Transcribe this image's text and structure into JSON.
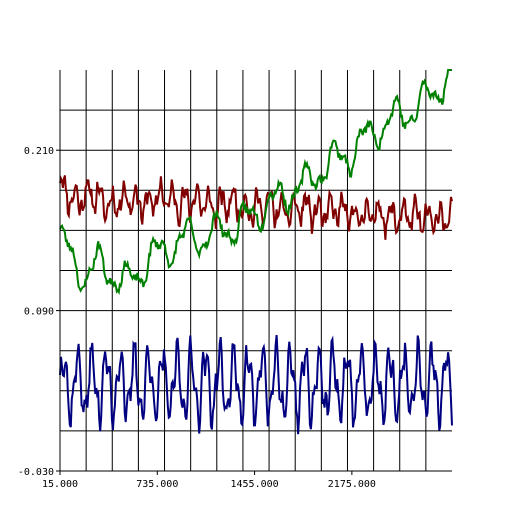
{
  "chart_data": {
    "type": "line",
    "title": "",
    "xlabel": "",
    "ylabel": "",
    "xlim": [
      15.0,
      2916.0
    ],
    "ylim": [
      -0.03,
      0.27
    ],
    "x_ticks": [
      15.0,
      735.0,
      1455.0,
      2175.0
    ],
    "x_tick_labels": [
      "15.000",
      "735.000",
      "1455.000",
      "2175.000"
    ],
    "y_ticks": [
      -0.03,
      0.09,
      0.21
    ],
    "y_tick_labels": [
      "-0.030",
      "0.090",
      "0.210"
    ],
    "grid": true,
    "series": [
      {
        "color": "#800000",
        "values": [
          [
            15,
            0.184
          ],
          [
            120,
            0.172
          ],
          [
            250,
            0.178
          ],
          [
            380,
            0.168
          ],
          [
            510,
            0.175
          ],
          [
            640,
            0.169
          ],
          [
            770,
            0.176
          ],
          [
            900,
            0.17
          ],
          [
            1030,
            0.173
          ],
          [
            1160,
            0.167
          ],
          [
            1290,
            0.172
          ],
          [
            1420,
            0.165
          ],
          [
            1550,
            0.17
          ],
          [
            1680,
            0.163
          ],
          [
            1810,
            0.168
          ],
          [
            1940,
            0.162
          ],
          [
            2070,
            0.166
          ],
          [
            2200,
            0.16
          ],
          [
            2330,
            0.164
          ],
          [
            2460,
            0.159
          ],
          [
            2590,
            0.162
          ],
          [
            2720,
            0.158
          ],
          [
            2916,
            0.16
          ]
        ]
      },
      {
        "color": "#008000",
        "values": [
          [
            15,
            0.148
          ],
          [
            100,
            0.128
          ],
          [
            200,
            0.115
          ],
          [
            300,
            0.126
          ],
          [
            380,
            0.12
          ],
          [
            480,
            0.11
          ],
          [
            600,
            0.118
          ],
          [
            720,
            0.133
          ],
          [
            840,
            0.137
          ],
          [
            960,
            0.146
          ],
          [
            1080,
            0.144
          ],
          [
            1200,
            0.151
          ],
          [
            1320,
            0.152
          ],
          [
            1440,
            0.162
          ],
          [
            1560,
            0.17
          ],
          [
            1680,
            0.177
          ],
          [
            1800,
            0.183
          ],
          [
            1920,
            0.192
          ],
          [
            2040,
            0.204
          ],
          [
            2160,
            0.206
          ],
          [
            2280,
            0.22
          ],
          [
            2400,
            0.228
          ],
          [
            2520,
            0.237
          ],
          [
            2640,
            0.239
          ],
          [
            2760,
            0.253
          ],
          [
            2916,
            0.265
          ]
        ]
      },
      {
        "color": "#000080",
        "values": [
          [
            15,
            0.035
          ],
          [
            2916,
            0.035
          ]
        ]
      }
    ]
  }
}
